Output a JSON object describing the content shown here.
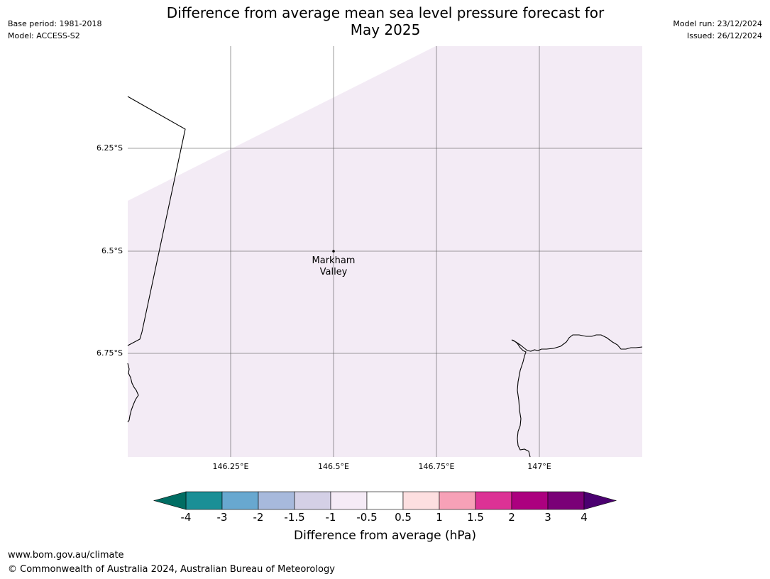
{
  "header": {
    "title_line1": "Difference from average mean sea level pressure forecast for",
    "title_line2": "May 2025",
    "base_period": "Base period: 1981-2018",
    "model": "Model: ACCESS-S2",
    "model_run": "Model run: 23/12/2024",
    "issued": "Issued: 26/12/2024"
  },
  "map": {
    "lat_labels": [
      "6.25°S",
      "6.5°S",
      "6.75°S"
    ],
    "lon_labels": [
      "146.25°E",
      "146.5°E",
      "146.75°E",
      "147°E"
    ],
    "place": {
      "name_line1": "Markham",
      "name_line2": "Valley"
    },
    "fill_color": "#f3ebf5",
    "gridline_color": "#555555",
    "coastline_color": "#000000"
  },
  "legend": {
    "label": "Difference from average (hPa)",
    "ticks": [
      "-4",
      "-3",
      "-2",
      "-1.5",
      "-1",
      "-0.5",
      "0.5",
      "1",
      "1.5",
      "2",
      "3",
      "4"
    ],
    "colors": [
      "#1a8f96",
      "#68a8d0",
      "#a7b9dc",
      "#d4d0e6",
      "#f5ebf6",
      "#ffffff",
      "#fddfe0",
      "#f7a1b7",
      "#dc3295",
      "#ac007f",
      "#7a0077"
    ],
    "under_color": "#006d63",
    "over_color": "#4b0070"
  },
  "footer": {
    "url": "www.bom.gov.au/climate",
    "copyright": "© Commonwealth of Australia 2024, Australian Bureau of Meteorology"
  }
}
